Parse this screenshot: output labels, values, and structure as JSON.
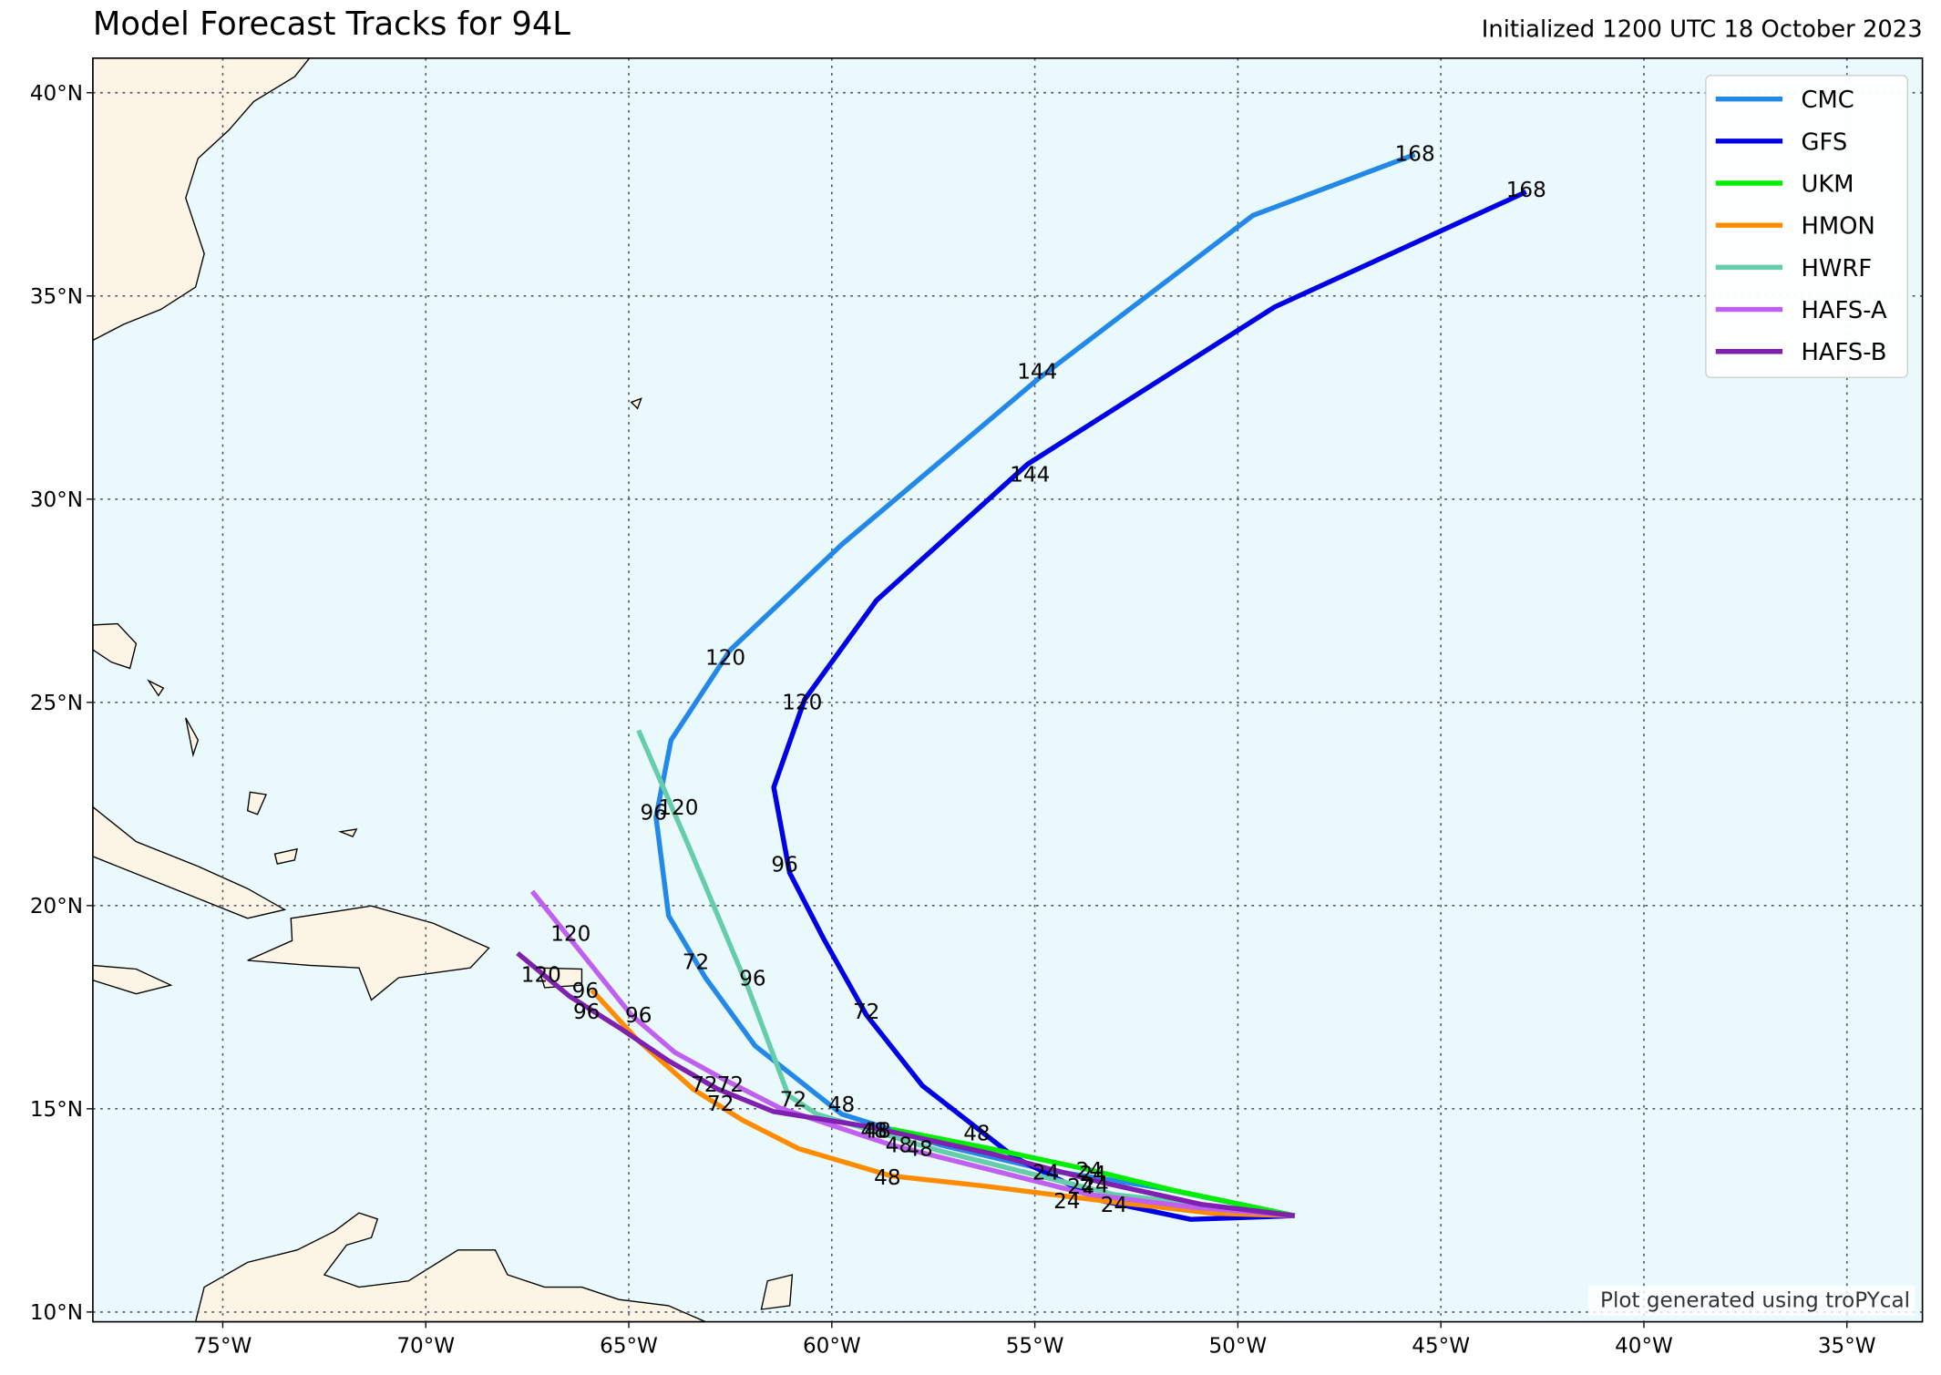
{
  "chart_data": {
    "type": "line",
    "title": "Model Forecast Tracks for 94L",
    "subtitle": "Initialized 1200 UTC 18 October 2023",
    "credit": "Plot generated using troPYcal",
    "xlim": [
      -78.2,
      -33.14
    ],
    "ylim": [
      9.76,
      40.85
    ],
    "xticks": [
      {
        "value": -75,
        "label": "75°W"
      },
      {
        "value": -70,
        "label": "70°W"
      },
      {
        "value": -65,
        "label": "65°W"
      },
      {
        "value": -60,
        "label": "60°W"
      },
      {
        "value": -55,
        "label": "55°W"
      },
      {
        "value": -50,
        "label": "50°W"
      },
      {
        "value": -45,
        "label": "45°W"
      },
      {
        "value": -40,
        "label": "40°W"
      },
      {
        "value": -35,
        "label": "35°W"
      }
    ],
    "yticks": [
      {
        "value": 10,
        "label": "10°N"
      },
      {
        "value": 15,
        "label": "15°N"
      },
      {
        "value": 20,
        "label": "20°N"
      },
      {
        "value": 25,
        "label": "25°N"
      },
      {
        "value": 30,
        "label": "30°N"
      },
      {
        "value": 35,
        "label": "35°N"
      },
      {
        "value": 40,
        "label": "40°N"
      }
    ],
    "grid": true,
    "legend": "upper right",
    "series": [
      {
        "name": "CMC",
        "color": "#2389e8",
        "x": [
          -48.6,
          -51.83,
          -54.73,
          -57.32,
          -59.76,
          -61.89,
          -63.11,
          -64.02,
          -64.33,
          -63.96,
          -62.5,
          -59.76,
          -54.88,
          -49.63,
          -45.64
        ],
        "y": [
          12.37,
          13.04,
          13.5,
          14.11,
          14.87,
          16.55,
          18.22,
          19.75,
          22.18,
          24.07,
          26.29,
          28.88,
          32.99,
          36.98,
          38.48
        ],
        "labels": {
          "text": [
            24,
            48,
            72,
            96,
            120,
            144,
            168
          ],
          "x": [
            -54.73,
            -59.76,
            -63.35,
            -64.39,
            -62.62,
            -54.94,
            -45.64
          ],
          "y": [
            13.44,
            15.11,
            18.62,
            22.3,
            26.11,
            33.15,
            38.51
          ]
        }
      },
      {
        "name": "GFS",
        "color": "#0000e6",
        "x": [
          -48.6,
          -51.16,
          -53.35,
          -55.49,
          -57.77,
          -59.15,
          -60.21,
          -61.04,
          -61.43,
          -60.67,
          -58.9,
          -55.18,
          -49.09,
          -42.9
        ],
        "y": [
          12.37,
          12.28,
          12.74,
          13.8,
          15.57,
          17.31,
          19.2,
          20.81,
          22.91,
          25.07,
          27.51,
          30.86,
          34.73,
          37.56
        ],
        "labels": {
          "text": [
            24,
            48,
            72,
            96,
            120,
            144,
            168
          ],
          "x": [
            -53.05,
            -56.43,
            -59.15,
            -61.16,
            -60.73,
            -55.12,
            -42.9
          ],
          "y": [
            12.65,
            14.41,
            17.4,
            21.02,
            25.01,
            30.62,
            37.62
          ]
        }
      },
      {
        "name": "UKM",
        "color": "#00ee00",
        "x": [
          -48.6,
          -51.52,
          -53.66,
          -56.1,
          -58.54
        ],
        "y": [
          12.37,
          12.98,
          13.5,
          14.02,
          14.5
        ],
        "labels": {
          "text": [
            24,
            48
          ],
          "x": [
            -53.66,
            -58.87
          ],
          "y": [
            13.5,
            14.47
          ]
        }
      },
      {
        "name": "HMON",
        "color": "#ff8c00",
        "x": [
          -48.6,
          -50.61,
          -53.35,
          -56.25,
          -58.54,
          -60.82,
          -62.2,
          -63.41,
          -64.79,
          -65.91
        ],
        "y": [
          12.37,
          12.43,
          12.74,
          13.1,
          13.35,
          14.02,
          14.72,
          15.48,
          16.7,
          17.92
        ],
        "labels": {
          "text": [
            24,
            48,
            72,
            96
          ],
          "x": [
            -54.21,
            -58.63,
            -62.74,
            -66.07
          ],
          "y": [
            12.74,
            13.32,
            15.14,
            17.92
          ]
        }
      },
      {
        "name": "HWRF",
        "color": "#66cdaa",
        "x": [
          -48.6,
          -53.05,
          -57.32,
          -60.37,
          -61.07,
          -62.04,
          -63.57,
          -64.76
        ],
        "y": [
          12.37,
          12.89,
          13.96,
          14.87,
          15.33,
          17.92,
          21.57,
          24.31
        ],
        "labels": {
          "text": [
            24,
            48,
            72,
            96,
            120
          ],
          "x": [
            -53.51,
            -58.96,
            -60.95,
            -61.95,
            -63.78
          ],
          "y": [
            13.13,
            14.47,
            15.24,
            18.22,
            22.42
          ]
        }
      },
      {
        "name": "HAFS-A",
        "color": "#c060f0",
        "x": [
          -48.6,
          -51.22,
          -53.66,
          -56.1,
          -58.54,
          -61.28,
          -62.65,
          -63.87,
          -64.94,
          -66.16,
          -67.38
        ],
        "y": [
          12.37,
          12.59,
          12.89,
          13.5,
          14.11,
          15.02,
          15.72,
          16.39,
          17.31,
          18.83,
          20.35
        ],
        "labels": {
          "text": [
            24,
            48,
            72,
            96,
            120
          ],
          "x": [
            -53.87,
            -58.35,
            -62.5,
            -64.76,
            -66.43
          ],
          "y": [
            13.1,
            14.11,
            15.6,
            17.31,
            19.32
          ]
        }
      },
      {
        "name": "HAFS-B",
        "color": "#8020b0",
        "x": [
          -48.6,
          -50.91,
          -53.35,
          -56.1,
          -59.15,
          -61.43,
          -62.8,
          -64.02,
          -65.24,
          -66.46,
          -67.74
        ],
        "y": [
          12.37,
          12.65,
          13.19,
          13.9,
          14.57,
          14.93,
          15.48,
          16.18,
          17.0,
          17.77,
          18.83
        ],
        "labels": {
          "text": [
            24,
            48,
            72,
            96,
            120
          ],
          "x": [
            -53.57,
            -57.84,
            -63.14,
            -66.04,
            -67.16
          ],
          "y": [
            13.41,
            14.02,
            15.6,
            17.4,
            18.31
          ]
        }
      }
    ]
  }
}
